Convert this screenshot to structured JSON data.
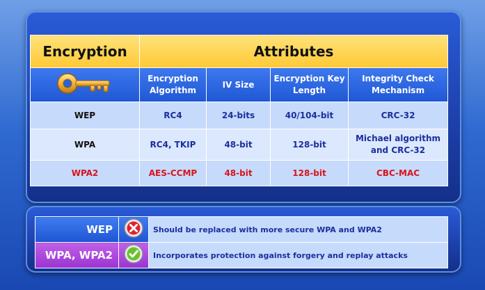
{
  "table": {
    "header": {
      "encryption": "Encryption",
      "attributes": "Attributes"
    },
    "columns": [
      "Encryption Algorithm",
      "IV Size",
      "Encryption Key Length",
      "Integrity Check Mechanism"
    ],
    "key_icon": "key-icon",
    "rows": [
      {
        "name": "WEP",
        "algorithm": "RC4",
        "iv_size": "24-bits",
        "key_length": "40/104-bit",
        "integrity": "CRC-32"
      },
      {
        "name": "WPA",
        "algorithm": "RC4, TKIP",
        "iv_size": "48-bit",
        "key_length": "128-bit",
        "integrity": "Michael algorithm and CRC-32"
      },
      {
        "name": "WPA2",
        "algorithm": "AES-CCMP",
        "iv_size": "48-bit",
        "key_length": "128-bit",
        "integrity": "CBC-MAC"
      }
    ]
  },
  "legend": [
    {
      "label": "WEP",
      "icon": "red-x-icon",
      "text": "Should be replaced with more secure WPA and WPA2"
    },
    {
      "label": "WPA, WPA2",
      "icon": "green-check-icon",
      "text": "Incorporates protection against forgery and replay attacks"
    }
  ],
  "colors": {
    "header_gold": "#ffc834",
    "subheader_blue": "#1f57d4",
    "row_blue": "#c6dafc",
    "text_blue": "#1b2f9e",
    "highlight_red": "#d8141c",
    "wpa_purple": "#9a34d0"
  }
}
